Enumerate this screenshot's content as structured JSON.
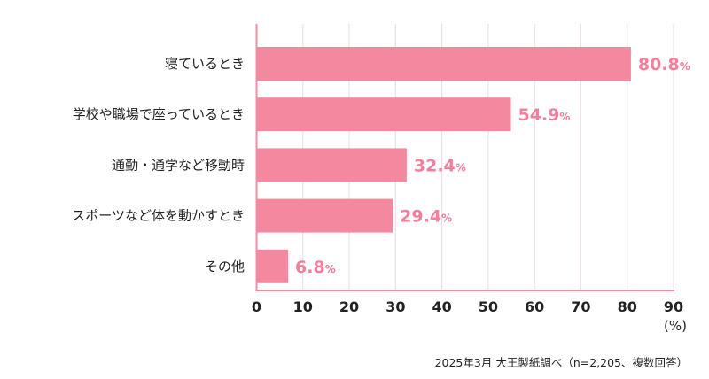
{
  "chart_data": {
    "type": "bar",
    "orientation": "horizontal",
    "categories": [
      "寝ているとき",
      "学校や職場で座っているとき",
      "通勤・通学など移動時",
      "スポーツなど体を動かすとき",
      "その他"
    ],
    "values": [
      80.8,
      54.9,
      32.4,
      29.4,
      6.8
    ],
    "value_labels": [
      "80.8",
      "54.9",
      "32.4",
      "29.4",
      "6.8"
    ],
    "value_suffix": "%",
    "xlim": [
      0,
      90
    ],
    "xticks": [
      0,
      10,
      20,
      30,
      40,
      50,
      60,
      70,
      80,
      90
    ],
    "xunit": "(%)",
    "grid": true,
    "colors": {
      "bar": "#f4889f",
      "label": "#f27f9b",
      "grid": "#efdfe4",
      "axis": "#f08ca4"
    }
  },
  "footnote": "2025年3月 大王製紙調べ（n=2,205、複数回答）"
}
